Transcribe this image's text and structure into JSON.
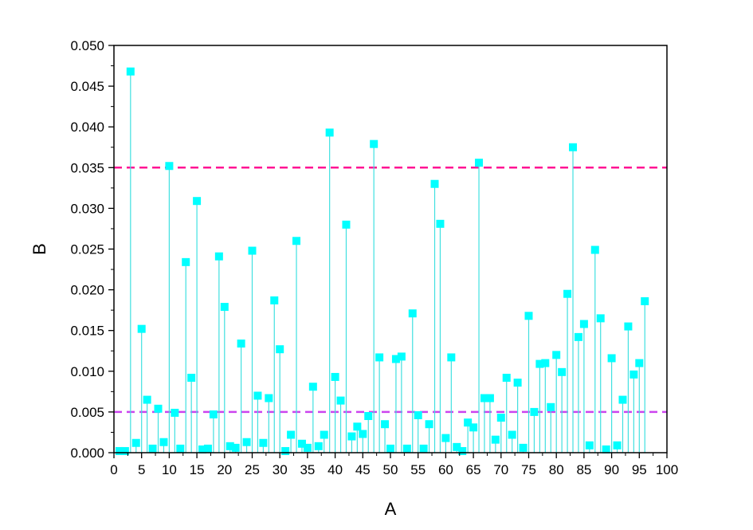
{
  "chart_data": {
    "type": "scatter",
    "style": "stem",
    "xlabel": "A",
    "ylabel": "B",
    "xlim": [
      0,
      100
    ],
    "ylim": [
      0,
      0.05
    ],
    "x_ticks": [
      "0",
      "5",
      "10",
      "15",
      "20",
      "25",
      "30",
      "35",
      "40",
      "45",
      "50",
      "55",
      "60",
      "65",
      "70",
      "75",
      "80",
      "85",
      "90",
      "95",
      "100"
    ],
    "y_ticks": [
      "0.000",
      "0.005",
      "0.010",
      "0.015",
      "0.020",
      "0.025",
      "0.030",
      "0.035",
      "0.040",
      "0.045",
      "0.050"
    ],
    "grid": false,
    "marker_color": "#00ffff",
    "stem_color": "#40e0e0",
    "reference_lines": [
      {
        "y": 0.035,
        "color": "#ff1493",
        "style": "dashed"
      },
      {
        "y": 0.005,
        "color": "#cc44ee",
        "style": "dashed"
      }
    ],
    "series": [
      {
        "x": [
          1,
          2,
          3,
          4,
          5,
          6,
          7,
          8,
          9,
          10,
          11,
          12,
          13,
          14,
          15,
          16,
          17,
          18,
          19,
          20,
          21,
          22,
          23,
          24,
          25,
          26,
          27,
          28,
          29,
          30,
          31,
          32,
          33,
          34,
          35,
          36,
          37,
          38,
          39,
          40,
          41,
          42,
          43,
          44,
          45,
          46,
          47,
          48,
          49,
          50,
          51,
          52,
          53,
          54,
          55,
          56,
          57,
          58,
          59,
          60,
          61,
          62,
          63,
          64,
          65,
          66,
          67,
          68,
          69,
          70,
          71,
          72,
          73,
          74,
          75,
          76,
          77,
          78,
          79,
          80,
          81,
          82,
          83,
          84,
          85,
          86,
          87,
          88,
          89,
          90,
          91,
          92,
          93,
          94,
          95,
          96
        ],
        "y": [
          0.0002,
          0.0002,
          0.0468,
          0.0012,
          0.0152,
          0.0065,
          0.0005,
          0.0054,
          0.0013,
          0.0352,
          0.0049,
          0.0005,
          0.0234,
          0.0092,
          0.0309,
          0.0004,
          0.0005,
          0.0047,
          0.0241,
          0.0179,
          0.0008,
          0.0006,
          0.0134,
          0.0013,
          0.0248,
          0.007,
          0.0012,
          0.0067,
          0.0187,
          0.0127,
          0.0002,
          0.0022,
          0.026,
          0.0011,
          0.0006,
          0.0081,
          0.0008,
          0.0022,
          0.0393,
          0.0093,
          0.0064,
          0.028,
          0.002,
          0.0032,
          0.0023,
          0.0045,
          0.0379,
          0.0117,
          0.0035,
          0.0005,
          0.0115,
          0.0118,
          0.0005,
          0.0171,
          0.0046,
          0.0005,
          0.0035,
          0.033,
          0.0281,
          0.0018,
          0.0117,
          0.0007,
          0.0002,
          0.0037,
          0.0031,
          0.0356,
          0.0067,
          0.0067,
          0.0016,
          0.0043,
          0.0092,
          0.0022,
          0.0086,
          0.0006,
          0.0168,
          0.005,
          0.0109,
          0.011,
          0.0056,
          0.012,
          0.0099,
          0.0195,
          0.0375,
          0.0142,
          0.0158,
          0.0009,
          0.0249,
          0.0165,
          0.0004,
          0.0116,
          0.0009,
          0.0065,
          0.0155,
          0.0096,
          0.011,
          0.0186
        ]
      }
    ]
  }
}
